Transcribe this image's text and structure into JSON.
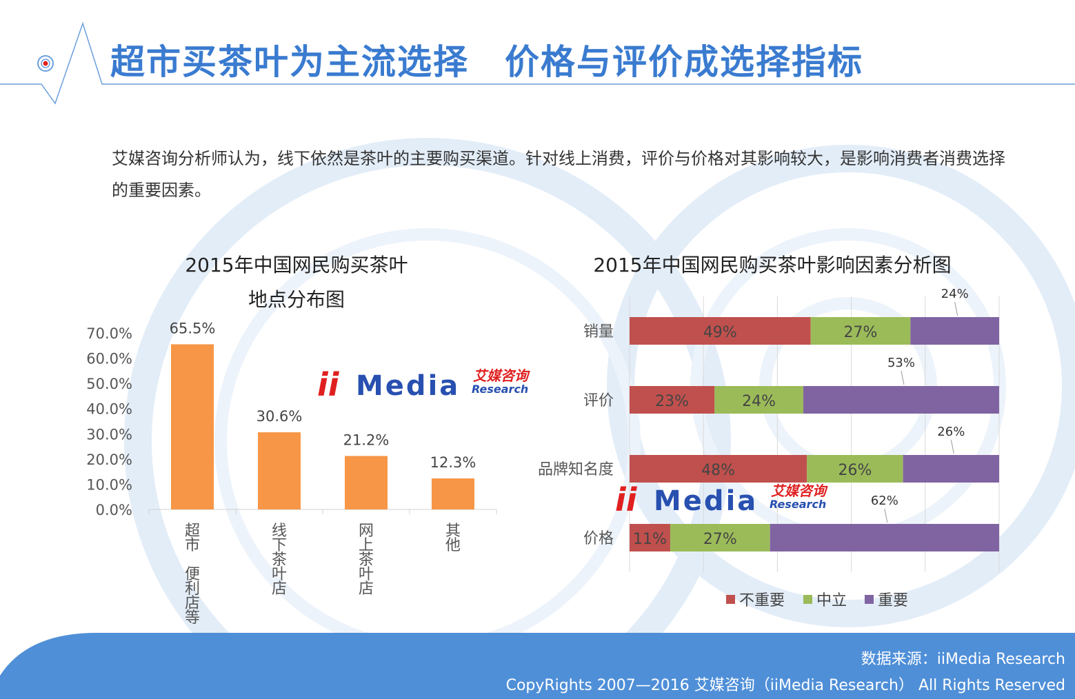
{
  "page": {
    "title": "超市买茶叶为主流选择　价格与评价成选择指标",
    "intro": "艾媒咨询分析师认为，线下依然是茶叶的主要购买渠道。针对线上消费，评价与价格对其影响较大，是影响消费者消费选择的重要因素。"
  },
  "logo": {
    "mark": "iiMedia",
    "cn": "艾媒咨询",
    "en": "Research"
  },
  "footer": {
    "source": "数据来源：iiMedia Research",
    "copyright": "CopyRights 2007—2016 艾媒咨询（iiMedia Research） All Rights Reserved"
  },
  "colors": {
    "accent": "#3a7bd0",
    "bar": "#f79646",
    "unimportant": "#c0504d",
    "neutral": "#9bbb59",
    "important": "#8064a2",
    "footer": "#4f8fd8"
  },
  "chart_data": [
    {
      "type": "bar",
      "title_line1": "2015年中国网民购买茶叶",
      "title_line2": "地点分布图",
      "categories": [
        "超市 便利店等",
        "线下茶叶店",
        "网上茶叶店",
        "其他"
      ],
      "values": [
        65.5,
        30.6,
        21.2,
        12.3
      ],
      "value_labels": [
        "65.5%",
        "30.6%",
        "21.2%",
        "12.3%"
      ],
      "ylim": [
        0,
        70
      ],
      "yticks": [
        "0.0%",
        "10.0%",
        "20.0%",
        "30.0%",
        "40.0%",
        "50.0%",
        "60.0%",
        "70.0%"
      ],
      "grid": false
    },
    {
      "type": "bar",
      "orientation": "horizontal-stacked-100",
      "title": "2015年中国网民购买茶叶影响因素分析图",
      "categories": [
        "销量",
        "评价",
        "品牌知名度",
        "价格"
      ],
      "series": [
        {
          "name": "不重要",
          "values": [
            49,
            23,
            48,
            11
          ],
          "labels": [
            "49%",
            "23%",
            "48%",
            "11%"
          ]
        },
        {
          "name": "中立",
          "values": [
            27,
            24,
            26,
            27
          ],
          "labels": [
            "27%",
            "24%",
            "26%",
            "27%"
          ]
        },
        {
          "name": "重要",
          "values": [
            24,
            53,
            26,
            62
          ],
          "labels": [
            "24%",
            "53%",
            "26%",
            "62%"
          ]
        }
      ],
      "xlim": [
        0,
        100
      ],
      "grid": true,
      "legend": "bottom"
    }
  ]
}
